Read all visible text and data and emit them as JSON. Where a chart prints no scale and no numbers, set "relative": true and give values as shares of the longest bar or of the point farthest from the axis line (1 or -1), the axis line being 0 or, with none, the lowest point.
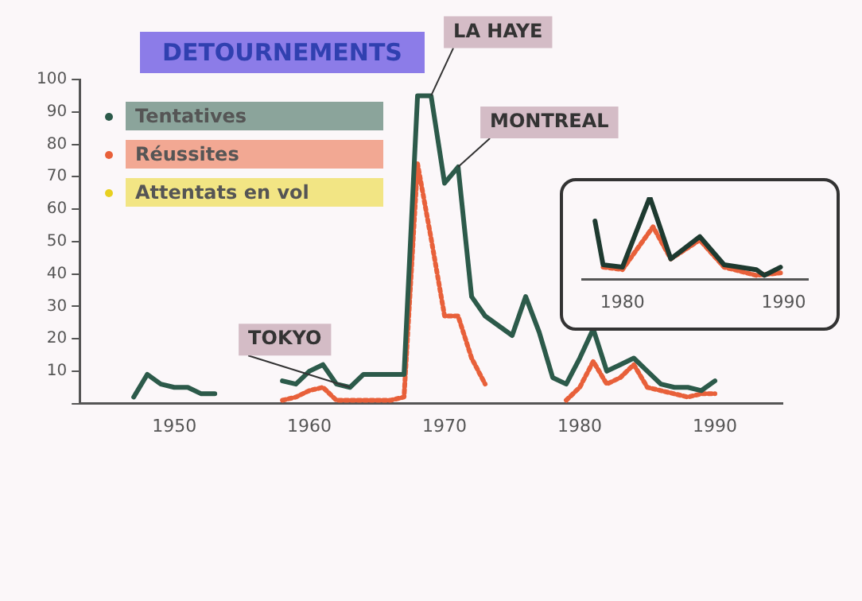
{
  "chart_data": [
    {
      "type": "line",
      "title": "DETOURNEMENTS",
      "x": [
        1947,
        1948,
        1949,
        1950,
        1951,
        1952,
        1953,
        1954,
        1955,
        1956,
        1957,
        1958,
        1959,
        1960,
        1961,
        1962,
        1963,
        1964,
        1965,
        1966,
        1967,
        1968,
        1969,
        1970,
        1971,
        1972,
        1973,
        1974,
        1975,
        1976,
        1977,
        1978,
        1979,
        1980,
        1981,
        1982,
        1983,
        1984,
        1985,
        1986,
        1987,
        1988,
        1989,
        1990
      ],
      "series": [
        {
          "name": "Tentatives",
          "color": "#2c5a4a",
          "values": [
            2,
            9,
            6,
            5,
            5,
            3,
            3,
            null,
            null,
            null,
            null,
            7,
            6,
            10,
            12,
            6,
            5,
            9,
            9,
            9,
            9,
            95,
            95,
            68,
            73,
            33,
            27,
            24,
            21,
            33,
            22,
            8,
            6,
            14,
            23,
            10,
            12,
            14,
            10,
            6,
            5,
            5,
            4,
            7
          ]
        },
        {
          "name": "Réussites",
          "color": "#e8603a",
          "line_style": "dotted",
          "values": [
            null,
            null,
            null,
            null,
            null,
            null,
            null,
            null,
            null,
            null,
            null,
            1,
            2,
            4,
            5,
            1,
            1,
            1,
            1,
            1,
            2,
            74,
            51,
            27,
            27,
            14,
            6,
            null,
            null,
            null,
            null,
            null,
            1,
            5,
            13,
            6,
            8,
            12,
            5,
            4,
            3,
            2,
            3,
            3
          ]
        },
        {
          "name": "Attentats en vol",
          "color": "#e8d020",
          "values": [
            null,
            null,
            null,
            null,
            null,
            null,
            null,
            null,
            null,
            null,
            null,
            null,
            null,
            null,
            null,
            null,
            null,
            null,
            null,
            null,
            null,
            null,
            null,
            null,
            null,
            null,
            null,
            null,
            null,
            null,
            null,
            null,
            null,
            null,
            null,
            null,
            null,
            null,
            null,
            null,
            null,
            null,
            null,
            null
          ]
        }
      ],
      "xlim": [
        1943,
        1995
      ],
      "xticks": [
        1950,
        1960,
        1970,
        1980,
        1990
      ],
      "ylim": [
        0,
        100
      ],
      "yticks": [
        {
          "value": 0,
          "label": null
        },
        10,
        20,
        30,
        40,
        50,
        60,
        70,
        80,
        90,
        100
      ],
      "grid": false,
      "legend": "top left",
      "annotations": [
        {
          "text": "LA HAYE",
          "x": 1969,
          "y": 95
        },
        {
          "text": "MONTREAL",
          "x": 1971,
          "y": 73
        },
        {
          "text": "TOKYO",
          "x": 1963,
          "y": 5
        }
      ]
    },
    {
      "type": "line",
      "relative": true,
      "series": [
        {
          "color": "#1e3a30",
          "x": [
            1978.3,
            1978.8,
            1980,
            1981.7,
            1983,
            1984.8,
            1986.3,
            1988.3,
            1988.8,
            1989.8
          ],
          "values": [
            0.71,
            0.18,
            0.15,
            1,
            0.25,
            0.52,
            0.18,
            0.12,
            0.05,
            0.15
          ]
        },
        {
          "color": "#e8603a",
          "line_style": "dotted",
          "x": [
            1978.8,
            1980,
            1981.9,
            1983,
            1984.8,
            1986.3,
            1988.3,
            1989.8
          ],
          "values": [
            0.15,
            0.12,
            0.64,
            0.25,
            0.48,
            0.15,
            0.05,
            0.08
          ]
        }
      ],
      "xlim": [
        1977.5,
        1991.5
      ],
      "xticks": [
        1980,
        1990
      ],
      "grid": false
    }
  ]
}
